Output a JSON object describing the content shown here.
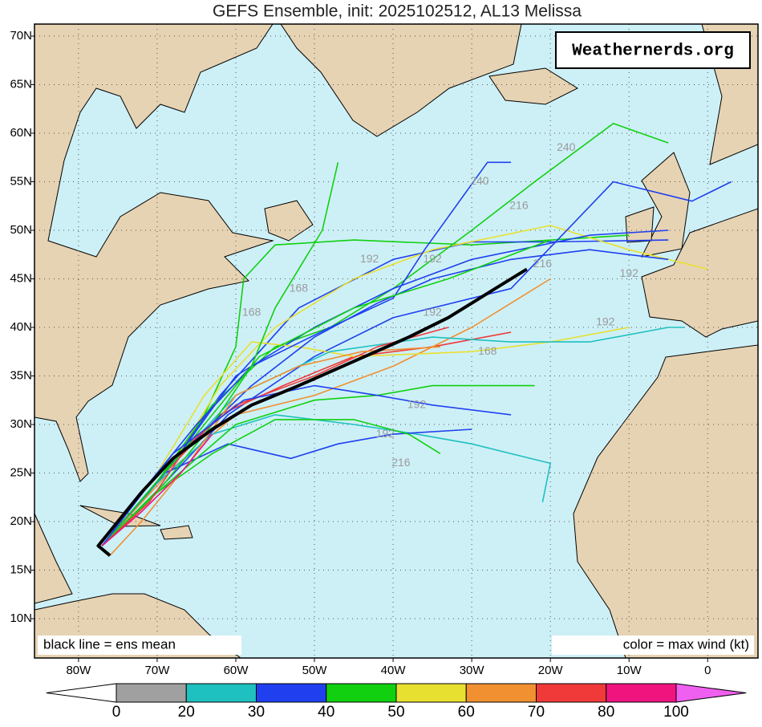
{
  "chart_data": {
    "type": "map",
    "title": "GEFS Ensemble, init: 2025102512, AL13 Melissa",
    "watermark": "Weathernerds.org",
    "annotations": [
      "black line = ens mean",
      "color = max wind (kt)"
    ],
    "xlim": [
      -85.6,
      6.4
    ],
    "ylim": [
      5.95,
      71.24
    ],
    "xticks": [
      {
        "value": -80,
        "label": "80W"
      },
      {
        "value": -70,
        "label": "70W"
      },
      {
        "value": -60,
        "label": "60W"
      },
      {
        "value": -50,
        "label": "50W"
      },
      {
        "value": -40,
        "label": "40W"
      },
      {
        "value": -30,
        "label": "30W"
      },
      {
        "value": -20,
        "label": "20W"
      },
      {
        "value": -10,
        "label": "10W"
      },
      0
    ],
    "yticks": [
      {
        "value": 10,
        "label": "10N"
      },
      {
        "value": 15,
        "label": "15N"
      },
      {
        "value": 20,
        "label": "20N"
      },
      {
        "value": 25,
        "label": "25N"
      },
      {
        "value": 30,
        "label": "30N"
      },
      {
        "value": 35,
        "label": "35N"
      },
      {
        "value": 40,
        "label": "40N"
      },
      {
        "value": 45,
        "label": "45N"
      },
      {
        "value": 50,
        "label": "50N"
      },
      {
        "value": 55,
        "label": "55N"
      },
      {
        "value": 60,
        "label": "60N"
      },
      {
        "value": 65,
        "label": "65N"
      },
      {
        "value": 70,
        "label": "70N"
      }
    ],
    "grid": true,
    "sea_color": "#cdf0f7",
    "mean": {
      "color": "#000000",
      "lon": [
        -76,
        -77.5,
        -75,
        -72,
        -68,
        -63,
        -58,
        -52,
        -45,
        -38,
        -33,
        -30,
        -27,
        -23
      ],
      "lat": [
        16.5,
        17.5,
        20,
        23,
        26.5,
        29.5,
        32,
        34,
        36.5,
        39,
        41,
        42.5,
        44,
        46
      ]
    },
    "tracks": [
      {
        "color": "#10d010",
        "lon": [
          -77,
          -70,
          -64,
          -60,
          -59,
          -55,
          -45,
          -30,
          -10
        ],
        "lat": [
          17.5,
          24,
          31,
          38,
          45,
          48.5,
          49,
          48.5,
          49.5
        ]
      },
      {
        "color": "#2040f0",
        "lon": [
          -77,
          -69,
          -62,
          -52,
          -40,
          -30,
          -20,
          -5
        ],
        "lat": [
          17.5,
          25,
          33,
          42,
          47,
          48.8,
          48.8,
          49
        ]
      },
      {
        "color": "#e8e030",
        "lon": [
          -77,
          -68,
          -62,
          -55,
          -45,
          -35,
          -20,
          -10,
          0
        ],
        "lat": [
          17.5,
          26,
          34,
          40,
          45,
          48,
          50.5,
          48,
          46
        ]
      },
      {
        "color": "#10d010",
        "lon": [
          -77,
          -71,
          -63,
          -55,
          -48,
          -40,
          -30,
          -22,
          -12,
          -5
        ],
        "lat": [
          17.5,
          23,
          32,
          38,
          40,
          44,
          50,
          55,
          61,
          59
        ]
      },
      {
        "color": "#2040f0",
        "lon": [
          -77,
          -69,
          -61,
          -50,
          -40,
          -25,
          -12,
          -2,
          3
        ],
        "lat": [
          17.5,
          24,
          31,
          37,
          41,
          44,
          55,
          53,
          55
        ]
      },
      {
        "color": "#f03a3a",
        "lon": [
          -77,
          -69,
          -62,
          -54,
          -45,
          -35,
          -25
        ],
        "lat": [
          17.5,
          25,
          31,
          34,
          37,
          38,
          39.5
        ]
      },
      {
        "color": "#f09030",
        "lon": [
          -77,
          -68,
          -60,
          -50,
          -40,
          -30,
          -20
        ],
        "lat": [
          17.5,
          25.5,
          31,
          33,
          36,
          40,
          45
        ]
      },
      {
        "color": "#1fc0c0",
        "lon": [
          -77,
          -70,
          -63,
          -55,
          -45,
          -37,
          -30,
          -20,
          -21
        ],
        "lat": [
          17.5,
          24,
          29,
          31,
          30,
          29,
          28,
          26,
          22
        ]
      },
      {
        "color": "#2040f0",
        "lon": [
          -77,
          -69,
          -61,
          -53,
          -47,
          -40,
          -30
        ],
        "lat": [
          17.5,
          25,
          28,
          26.5,
          28,
          29,
          29.5
        ]
      },
      {
        "color": "#10d010",
        "lon": [
          -77,
          -70,
          -60,
          -50,
          -42,
          -35,
          -22
        ],
        "lat": [
          17.5,
          23,
          30,
          32.5,
          33,
          34,
          34
        ]
      },
      {
        "color": "#2040f0",
        "lon": [
          -77,
          -68,
          -60,
          -50,
          -40,
          -30,
          -15,
          -5
        ],
        "lat": [
          17.5,
          26,
          35,
          40,
          44,
          47,
          49.5,
          50
        ]
      },
      {
        "color": "#e8e030",
        "lon": [
          -77,
          -70,
          -64,
          -58,
          -52,
          -45,
          -30,
          -20,
          -10
        ],
        "lat": [
          17.5,
          25,
          33,
          38.5,
          38,
          37,
          37.5,
          38.5,
          40
        ]
      },
      {
        "color": "#1fc0c0",
        "lon": [
          -77,
          -68,
          -60,
          -48,
          -35,
          -25,
          -15,
          -5,
          -3
        ],
        "lat": [
          17.5,
          26,
          33,
          37.5,
          39,
          38.5,
          38.5,
          40,
          40
        ]
      },
      {
        "color": "#2040f0",
        "lon": [
          -77,
          -71,
          -65,
          -58,
          -48,
          -40,
          -36,
          -28,
          -25
        ],
        "lat": [
          17.5,
          24,
          30,
          36,
          40,
          43,
          48,
          57,
          57
        ]
      },
      {
        "color": "#10d010",
        "lon": [
          -77,
          -70,
          -63,
          -55,
          -45,
          -38,
          -34
        ],
        "lat": [
          17.5,
          23,
          27,
          30.5,
          30.5,
          29,
          27
        ]
      },
      {
        "color": "#10d010",
        "lon": [
          -77,
          -69,
          -63,
          -58,
          -55,
          -49,
          -47
        ],
        "lat": [
          17.5,
          24,
          30,
          36,
          42,
          50,
          57
        ]
      },
      {
        "color": "#2040f0",
        "lon": [
          -77,
          -67,
          -58,
          -50,
          -42,
          -35,
          -25,
          -15,
          -5
        ],
        "lat": [
          17.5,
          27,
          34,
          39,
          42.5,
          45,
          47,
          48,
          47
        ]
      },
      {
        "color": "#f03a3a",
        "lon": [
          -77,
          -71,
          -66,
          -60,
          -50,
          -42,
          -33
        ],
        "lat": [
          17.5,
          22,
          28,
          32,
          35,
          38,
          40
        ]
      },
      {
        "color": "#f09030",
        "lon": [
          -76,
          -72,
          -66,
          -60,
          -52,
          -44,
          -34
        ],
        "lat": [
          16.5,
          20,
          26,
          33,
          36,
          37.5,
          38
        ]
      },
      {
        "color": "#10d010",
        "lon": [
          -77,
          -67,
          -57,
          -45,
          -33,
          -20
        ],
        "lat": [
          17.5,
          27,
          37,
          42,
          45,
          49
        ]
      },
      {
        "color": "#2040f0",
        "lon": [
          -77,
          -68,
          -59,
          -50,
          -42,
          -35,
          -25
        ],
        "lat": [
          17.5,
          27,
          32.5,
          34,
          33,
          32,
          31
        ]
      },
      {
        "color": "#f0147f",
        "lon": [
          -77,
          -72,
          -67,
          -63
        ],
        "lat": [
          17.5,
          21,
          25,
          29
        ]
      }
    ],
    "hour_labels": [
      {
        "text": 168,
        "lon": -58,
        "lat": 41.5
      },
      {
        "text": 168,
        "lon": -52,
        "lat": 44
      },
      {
        "text": 192,
        "lon": -43,
        "lat": 47
      },
      {
        "text": 192,
        "lon": -35,
        "lat": 47
      },
      {
        "text": 192,
        "lon": -35,
        "lat": 41.5
      },
      {
        "text": 216,
        "lon": -24,
        "lat": 52.5
      },
      {
        "text": 240,
        "lon": -29,
        "lat": 55
      },
      {
        "text": 240,
        "lon": -18,
        "lat": 58.5
      },
      {
        "text": 216,
        "lon": -21,
        "lat": 46.5
      },
      {
        "text": 192,
        "lon": -10,
        "lat": 45.5
      },
      {
        "text": 192,
        "lon": -13,
        "lat": 40.5
      },
      {
        "text": 168,
        "lon": -28,
        "lat": 37.5
      },
      {
        "text": 192,
        "lon": -37,
        "lat": 32
      },
      {
        "text": 192,
        "lon": -41,
        "lat": 29
      },
      {
        "text": 216,
        "lon": -39,
        "lat": 26
      }
    ],
    "hour_label_color": "#9a9a9a",
    "colorbar": {
      "levels": [
        0,
        20,
        30,
        40,
        50,
        60,
        70,
        80,
        100
      ],
      "colors": [
        "#a0a0a0",
        "#1fc0c0",
        "#2040f0",
        "#10d010",
        "#e8e030",
        "#f09030",
        "#f03a3a",
        "#f0147f"
      ],
      "under_color": "#ffffff",
      "over_color": "#f060f0"
    }
  }
}
